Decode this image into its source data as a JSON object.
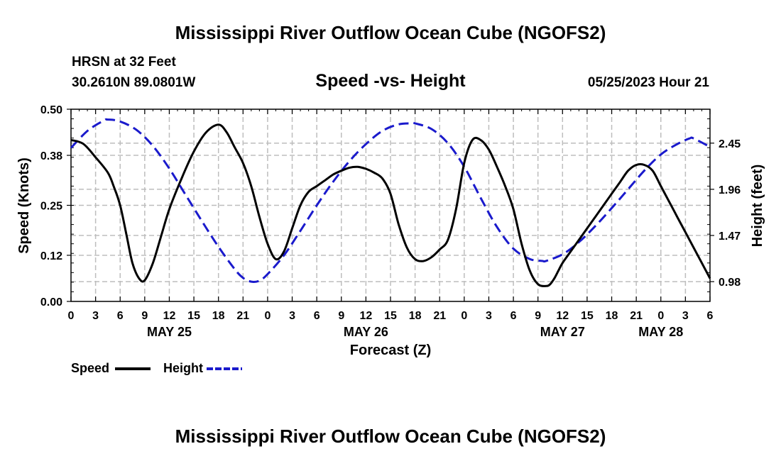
{
  "page": {
    "title_top": "Mississippi River Outflow Ocean Cube (NGOFS2)",
    "title_bottom": "Mississippi River Outflow Ocean Cube (NGOFS2)",
    "station": "HRSN at 32 Feet",
    "location": "30.2610N  89.0801W",
    "datetime": "05/25/2023 Hour 21"
  },
  "chart_data": {
    "type": "line",
    "title": "Speed -vs- Height",
    "xlabel": "Forecast (Z)",
    "ylabel": "Speed (Knots)",
    "y2label": "Height (feet)",
    "x_range_hours": [
      0,
      78
    ],
    "x_tick_step_hours": 3,
    "x_tick_labels": [
      "0",
      "3",
      "6",
      "9",
      "12",
      "15",
      "18",
      "21",
      "0",
      "3",
      "6",
      "9",
      "12",
      "15",
      "18",
      "21",
      "0",
      "3",
      "6",
      "9",
      "12",
      "15",
      "18",
      "21",
      "0",
      "3",
      "6"
    ],
    "date_labels": [
      {
        "hour": 12,
        "label": "MAY 25"
      },
      {
        "hour": 36,
        "label": "MAY 26"
      },
      {
        "hour": 60,
        "label": "MAY 27"
      },
      {
        "hour": 72,
        "label": "MAY 28"
      }
    ],
    "ylim": [
      0,
      0.5
    ],
    "y_ticks": [
      "0.00",
      "0.12",
      "0.25",
      "0.38",
      "0.50"
    ],
    "y2lim": [
      0.77,
      2.81
    ],
    "y2_ticks": [
      "0.98",
      "1.47",
      "1.96",
      "2.45"
    ],
    "legend": [
      {
        "name": "Speed",
        "color": "#000000",
        "style": "solid"
      },
      {
        "name": "Height",
        "color": "#1a1acc",
        "style": "dashed"
      }
    ],
    "series": [
      {
        "name": "Speed",
        "axis": "left",
        "x": [
          0,
          1.5,
          3,
          4.5,
          5.2,
          6,
          6.8,
          7.5,
          8.3,
          9,
          10,
          11,
          12,
          13.5,
          15,
          16.5,
          18,
          19,
          20,
          21,
          22,
          23,
          24,
          25,
          26,
          27,
          28,
          29,
          30,
          31,
          32,
          33,
          34,
          35,
          36,
          37,
          38,
          39,
          40,
          41,
          42,
          43,
          44,
          45,
          46,
          47,
          48,
          49,
          50,
          51,
          52,
          53,
          54,
          55,
          56,
          57,
          58,
          58.5,
          59,
          59.5,
          60,
          61,
          62,
          63,
          64,
          65,
          66,
          67,
          68,
          69,
          70,
          71,
          72,
          73,
          74,
          75,
          76,
          77,
          78
        ],
        "values": [
          0.42,
          0.41,
          0.375,
          0.335,
          0.3,
          0.25,
          0.17,
          0.1,
          0.06,
          0.055,
          0.1,
          0.17,
          0.24,
          0.32,
          0.39,
          0.44,
          0.46,
          0.44,
          0.4,
          0.36,
          0.3,
          0.22,
          0.15,
          0.11,
          0.13,
          0.19,
          0.25,
          0.285,
          0.3,
          0.315,
          0.33,
          0.34,
          0.348,
          0.35,
          0.345,
          0.335,
          0.32,
          0.28,
          0.2,
          0.14,
          0.11,
          0.105,
          0.115,
          0.135,
          0.16,
          0.24,
          0.36,
          0.42,
          0.42,
          0.395,
          0.35,
          0.3,
          0.24,
          0.15,
          0.08,
          0.045,
          0.04,
          0.045,
          0.06,
          0.08,
          0.1,
          0.13,
          0.16,
          0.19,
          0.22,
          0.25,
          0.28,
          0.31,
          0.34,
          0.355,
          0.355,
          0.34,
          0.3,
          0.26,
          0.22,
          0.18,
          0.14,
          0.1,
          0.06
        ]
      },
      {
        "name": "Height",
        "axis": "right",
        "x": [
          0,
          2,
          4,
          4.5,
          6,
          8,
          10,
          12,
          14,
          16,
          18,
          20,
          21,
          22,
          23,
          24,
          26,
          28,
          30,
          32,
          34,
          36,
          38,
          40,
          41.5,
          42,
          44,
          46,
          48,
          50,
          52,
          54,
          56,
          57.5,
          58,
          60,
          62,
          64,
          66,
          68,
          70,
          72,
          74,
          75.5,
          76,
          78
        ],
        "values": [
          2.4,
          2.58,
          2.69,
          2.7,
          2.68,
          2.59,
          2.42,
          2.18,
          1.9,
          1.62,
          1.35,
          1.11,
          1.02,
          0.98,
          0.99,
          1.06,
          1.26,
          1.52,
          1.79,
          2.04,
          2.26,
          2.44,
          2.58,
          2.65,
          2.66,
          2.66,
          2.6,
          2.45,
          2.2,
          1.87,
          1.56,
          1.33,
          1.22,
          1.2,
          1.2,
          1.27,
          1.4,
          1.57,
          1.76,
          1.96,
          2.16,
          2.33,
          2.44,
          2.5,
          2.5,
          2.41
        ]
      }
    ]
  }
}
